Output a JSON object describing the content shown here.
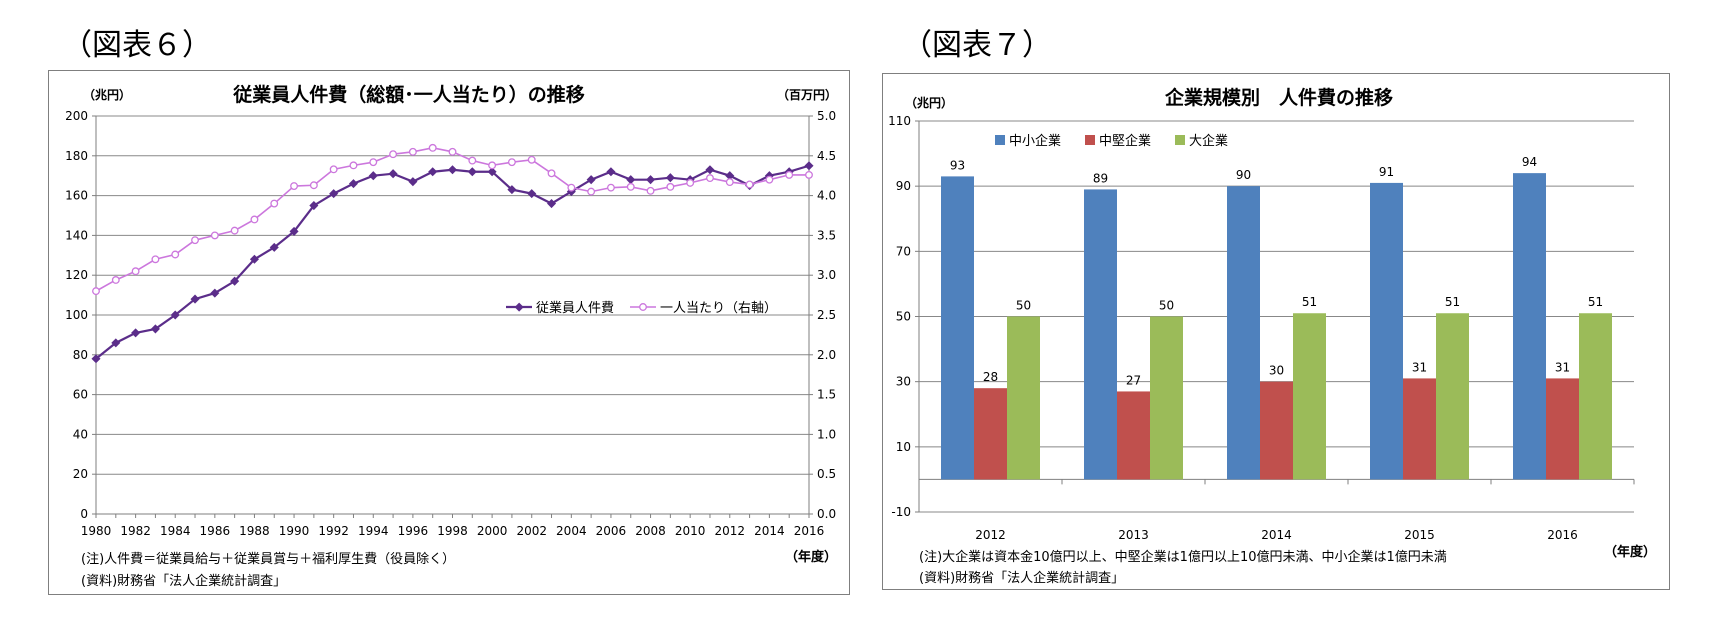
{
  "figure6": {
    "label": "（図表６）",
    "chart_data": {
      "type": "line",
      "title": "従業員人件費（総額･一人当たり）の推移",
      "ylabel_left": "（兆円）",
      "ylabel_right": "（百万円）",
      "xlabel": "（年度）",
      "x": [
        1980,
        1981,
        1982,
        1983,
        1984,
        1985,
        1986,
        1987,
        1988,
        1989,
        1990,
        1991,
        1992,
        1993,
        1994,
        1995,
        1996,
        1997,
        1998,
        1999,
        2000,
        2001,
        2002,
        2003,
        2004,
        2005,
        2006,
        2007,
        2008,
        2009,
        2010,
        2011,
        2012,
        2013,
        2014,
        2015,
        2016
      ],
      "x_ticks": [
        "1980",
        "1982",
        "1984",
        "1986",
        "1988",
        "1990",
        "1992",
        "1994",
        "1996",
        "1998",
        "2000",
        "2002",
        "2004",
        "2006",
        "2008",
        "2010",
        "2012",
        "2014",
        "2016"
      ],
      "y_left_range": [
        0,
        200
      ],
      "y_left_ticks": [
        "0",
        "20",
        "40",
        "60",
        "80",
        "100",
        "120",
        "140",
        "160",
        "180",
        "200"
      ],
      "y_right_range": [
        0,
        5
      ],
      "y_right_ticks": [
        "0.0",
        "0.5",
        "1.0",
        "1.5",
        "2.0",
        "2.5",
        "3.0",
        "3.5",
        "4.0",
        "4.5",
        "5.0"
      ],
      "grid": true,
      "legend_position": "center-right",
      "series": [
        {
          "name": "従業員人件費",
          "axis": "left",
          "color": "#5b2d8a",
          "values": [
            78,
            86,
            91,
            93,
            100,
            108,
            111,
            117,
            128,
            134,
            142,
            155,
            161,
            166,
            170,
            171,
            167,
            172,
            173,
            172,
            172,
            163,
            161,
            156,
            162,
            168,
            172,
            168,
            168,
            169,
            168,
            173,
            170,
            165,
            170,
            172,
            175
          ]
        },
        {
          "name": "一人当たり（右軸）",
          "axis": "right",
          "color": "#cc77dd",
          "values": [
            2.8,
            2.94,
            3.05,
            3.2,
            3.26,
            3.44,
            3.5,
            3.56,
            3.7,
            3.9,
            4.12,
            4.13,
            4.33,
            4.38,
            4.42,
            4.52,
            4.55,
            4.6,
            4.55,
            4.44,
            4.38,
            4.42,
            4.45,
            4.28,
            4.1,
            4.05,
            4.1,
            4.11,
            4.06,
            4.11,
            4.16,
            4.22,
            4.17,
            4.14,
            4.2,
            4.26,
            4.26
          ]
        }
      ]
    },
    "note": "(注)人件費＝従業員給与＋従業員賞与＋福利厚生費（役員除く）",
    "source": "(資料)財務省「法人企業統計調査」"
  },
  "figure7": {
    "label": "（図表７）",
    "chart_data": {
      "type": "bar",
      "title": "企業規模別　人件費の推移",
      "ylabel": "（兆円）",
      "xlabel": "（年度）",
      "categories": [
        "2012",
        "2013",
        "2014",
        "2015",
        "2016"
      ],
      "y_range": [
        -10,
        110
      ],
      "y_ticks": [
        "-10",
        "10",
        "30",
        "50",
        "70",
        "90",
        "110"
      ],
      "grid": true,
      "legend_position": "top-left",
      "series": [
        {
          "name": "中小企業",
          "color": "#4f81bd",
          "values": [
            93,
            89,
            90,
            91,
            94
          ],
          "labels": [
            "93",
            "89",
            "90",
            "91",
            "94"
          ]
        },
        {
          "name": "中堅企業",
          "color": "#c0504d",
          "values": [
            28,
            27,
            30,
            31,
            31
          ],
          "labels": [
            "28",
            "27",
            "30",
            "31",
            "31"
          ]
        },
        {
          "name": "大企業",
          "color": "#9bbb59",
          "values": [
            50,
            50,
            51,
            51,
            51
          ],
          "labels": [
            "50",
            "50",
            "51",
            "51",
            "51"
          ]
        }
      ]
    },
    "note": "(注)大企業は資本金10億円以上、中堅企業は1億円以上10億円未満、中小企業は1億円未満",
    "source": "(資料)財務省「法人企業統計調査」"
  }
}
